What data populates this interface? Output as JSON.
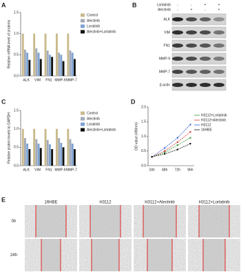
{
  "chart_data": [
    {
      "type": "bar",
      "panel_label": "A",
      "y_label": "Relative mRNA level of proteins",
      "categories": [
        "ALK",
        "VIM",
        "FN1",
        "MMP-9",
        "MMP-7"
      ],
      "series": [
        {
          "name": "Control",
          "color": "#c9b98c",
          "values": [
            1.0,
            1.0,
            1.0,
            1.0,
            1.0
          ]
        },
        {
          "name": "Alectinib",
          "color": "#a3aab8",
          "values": [
            0.62,
            0.65,
            0.6,
            0.55,
            0.6
          ]
        },
        {
          "name": "Loratinib",
          "color": "#7ea3d3",
          "values": [
            0.55,
            0.55,
            0.5,
            0.5,
            0.55
          ]
        },
        {
          "name": "Alectinib+Lorlatinib",
          "color": "#111111",
          "values": [
            0.38,
            0.4,
            0.45,
            0.35,
            0.4
          ]
        }
      ],
      "ylim": [
        0,
        1.5
      ],
      "yticks": [
        {
          "value": 0,
          "label": "0.0"
        },
        0.5,
        {
          "value": 1,
          "label": "1.0"
        },
        1.5
      ]
    },
    {
      "type": "bar",
      "panel_label": "C",
      "y_label": "Relative protein levels to GAPDH",
      "categories": [
        "ALK",
        "VIM",
        "FN1",
        "MMP-9",
        "MMP-7"
      ],
      "series": [
        {
          "name": "Control",
          "color": "#c9b98c",
          "values": [
            1.0,
            1.0,
            1.0,
            1.0,
            1.0
          ]
        },
        {
          "name": "Alectinib",
          "color": "#a3aab8",
          "values": [
            0.75,
            0.72,
            0.7,
            0.75,
            0.72
          ]
        },
        {
          "name": "Loratinib",
          "color": "#7ea3d3",
          "values": [
            0.6,
            0.6,
            0.58,
            0.62,
            0.6
          ]
        },
        {
          "name": "Alectinib+Lorlatinib",
          "color": "#111111",
          "values": [
            0.45,
            0.48,
            0.45,
            0.5,
            0.45
          ]
        }
      ],
      "ylim": [
        0,
        1.5
      ],
      "yticks": [
        {
          "value": 0,
          "label": "0.0"
        },
        0.5,
        {
          "value": 1,
          "label": "1.0"
        },
        1.5
      ]
    },
    {
      "type": "line",
      "panel_label": "D",
      "y_label": "OD value (490nm)",
      "categories": [
        "24h",
        "48h",
        "72h",
        "96h"
      ],
      "series": [
        {
          "name": "H3112+Lorlatinib",
          "color": "#3a9a3a",
          "values": [
            0.3,
            0.45,
            0.7,
            0.95
          ]
        },
        {
          "name": "H3112+Alectinib",
          "color": "#d23a3a",
          "values": [
            0.3,
            0.5,
            0.8,
            1.15
          ]
        },
        {
          "name": "H3112",
          "color": "#3a5fd2",
          "values": [
            0.3,
            0.6,
            0.95,
            1.4
          ]
        },
        {
          "name": "16HBE",
          "color": "#111111",
          "values": [
            0.3,
            0.4,
            0.55,
            0.75
          ]
        }
      ],
      "ylim": [
        0,
        2
      ],
      "yticks": [
        {
          "value": 0,
          "label": "0.0"
        },
        0.5,
        {
          "value": 1,
          "label": "1.0"
        },
        1.5,
        {
          "value": 2,
          "label": "2.0"
        }
      ]
    }
  ],
  "blot": {
    "panel_label": "B",
    "treatments": [
      {
        "name": "Lorlatinib",
        "signs": [
          "-",
          "-",
          "+",
          "+"
        ]
      },
      {
        "name": "Alectinib",
        "signs": [
          "-",
          "+",
          "-",
          "+"
        ]
      }
    ],
    "proteins": [
      "ALK",
      "VIM",
      "FN1",
      "MMP-9",
      "MMP-7",
      "β-actin"
    ]
  },
  "wound": {
    "panel_label": "E",
    "columns": [
      "16HBE",
      "H3112",
      "H3112+Alectinib",
      "H3112+Lorlatinib"
    ],
    "rows": [
      "0h",
      "24h"
    ]
  }
}
